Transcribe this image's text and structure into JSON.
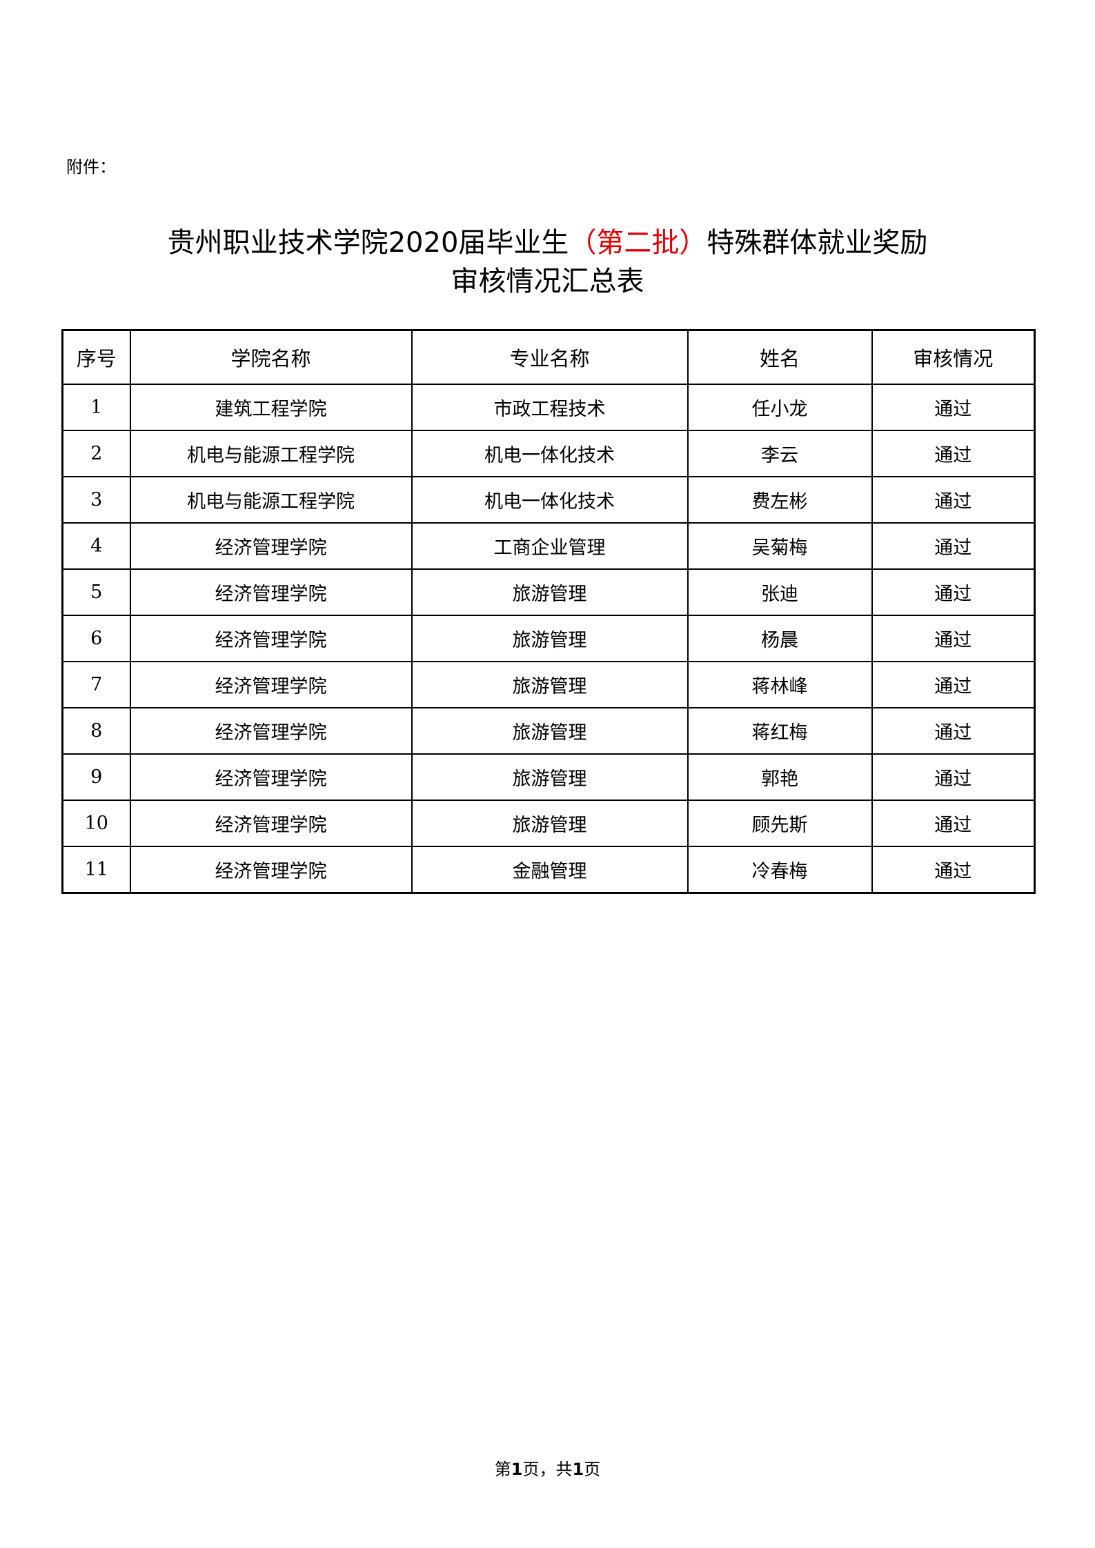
{
  "attachment_label": "附件：",
  "title": {
    "part1": "贵州职业技术学院2020届毕业生",
    "part_red": "（第二批）",
    "part2": "特殊群体就业奖励",
    "line2": "审核情况汇总表",
    "red_color": "#e60000"
  },
  "table": {
    "headers": [
      "序号",
      "学院名称",
      "专业名称",
      "姓名",
      "审核情况"
    ],
    "rows": [
      [
        "1",
        "建筑工程学院",
        "市政工程技术",
        "任小龙",
        "通过"
      ],
      [
        "2",
        "机电与能源工程学院",
        "机电一体化技术",
        "李云",
        "通过"
      ],
      [
        "3",
        "机电与能源工程学院",
        "机电一体化技术",
        "费左彬",
        "通过"
      ],
      [
        "4",
        "经济管理学院",
        "工商企业管理",
        "吴菊梅",
        "通过"
      ],
      [
        "5",
        "经济管理学院",
        "旅游管理",
        "张迪",
        "通过"
      ],
      [
        "6",
        "经济管理学院",
        "旅游管理",
        "杨晨",
        "通过"
      ],
      [
        "7",
        "经济管理学院",
        "旅游管理",
        "蒋林峰",
        "通过"
      ],
      [
        "8",
        "经济管理学院",
        "旅游管理",
        "蒋红梅",
        "通过"
      ],
      [
        "9",
        "经济管理学院",
        "旅游管理",
        "郭艳",
        "通过"
      ],
      [
        "10",
        "经济管理学院",
        "旅游管理",
        "顾先斯",
        "通过"
      ],
      [
        "11",
        "经济管理学院",
        "金融管理",
        "冷春梅",
        "通过"
      ]
    ]
  },
  "footer": {
    "prefix": "第",
    "page": "1",
    "mid": "页，共",
    "total": "1",
    "suffix": "页"
  }
}
